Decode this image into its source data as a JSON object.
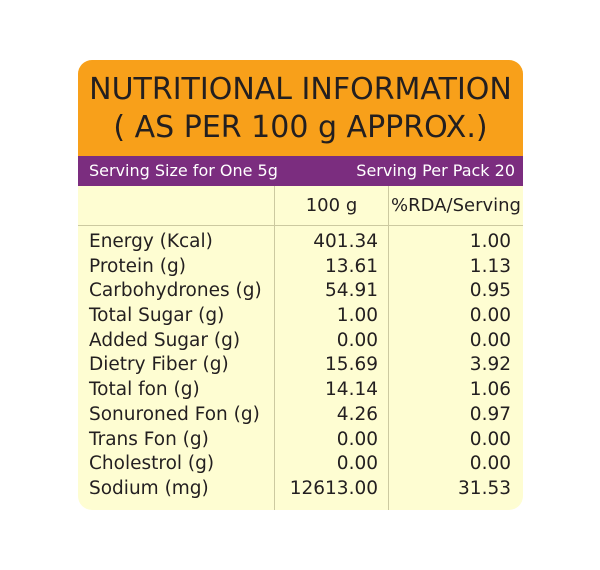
{
  "header": {
    "title_line1": "NUTRITIONAL INFORMATION",
    "title_line2": "( AS PER 100 g APPROX.)"
  },
  "serving": {
    "size": "Serving Size for One 5g",
    "per_pack": "Serving Per Pack 20"
  },
  "columns": {
    "per_100g": "100 g",
    "rda": "%RDA/Serving"
  },
  "rows": [
    {
      "nutrient": "Energy (Kcal)",
      "per_100g": "401.34",
      "rda": "1.00"
    },
    {
      "nutrient": "Protein (g)",
      "per_100g": "13.61",
      "rda": "1.13"
    },
    {
      "nutrient": "Carbohydrones (g)",
      "per_100g": "54.91",
      "rda": "0.95"
    },
    {
      "nutrient": "Total Sugar (g)",
      "per_100g": "1.00",
      "rda": "0.00"
    },
    {
      "nutrient": "Added Sugar (g)",
      "per_100g": "0.00",
      "rda": "0.00"
    },
    {
      "nutrient": "Dietry Fiber (g)",
      "per_100g": "15.69",
      "rda": "3.92"
    },
    {
      "nutrient": "Total fon (g)",
      "per_100g": "14.14",
      "rda": "1.06"
    },
    {
      "nutrient": "Sonuroned Fon (g)",
      "per_100g": "4.26",
      "rda": "0.97"
    },
    {
      "nutrient": "Trans Fon (g)",
      "per_100g": "0.00",
      "rda": "0.00"
    },
    {
      "nutrient": "Cholestrol (g)",
      "per_100g": "0.00",
      "rda": "0.00"
    },
    {
      "nutrient": "Sodium (mg)",
      "per_100g": "12613.00",
      "rda": "31.53"
    }
  ],
  "colors": {
    "header_bg": "#f8a01a",
    "serving_bg": "#7b2d7f",
    "panel_bg": "#fefdd2"
  }
}
